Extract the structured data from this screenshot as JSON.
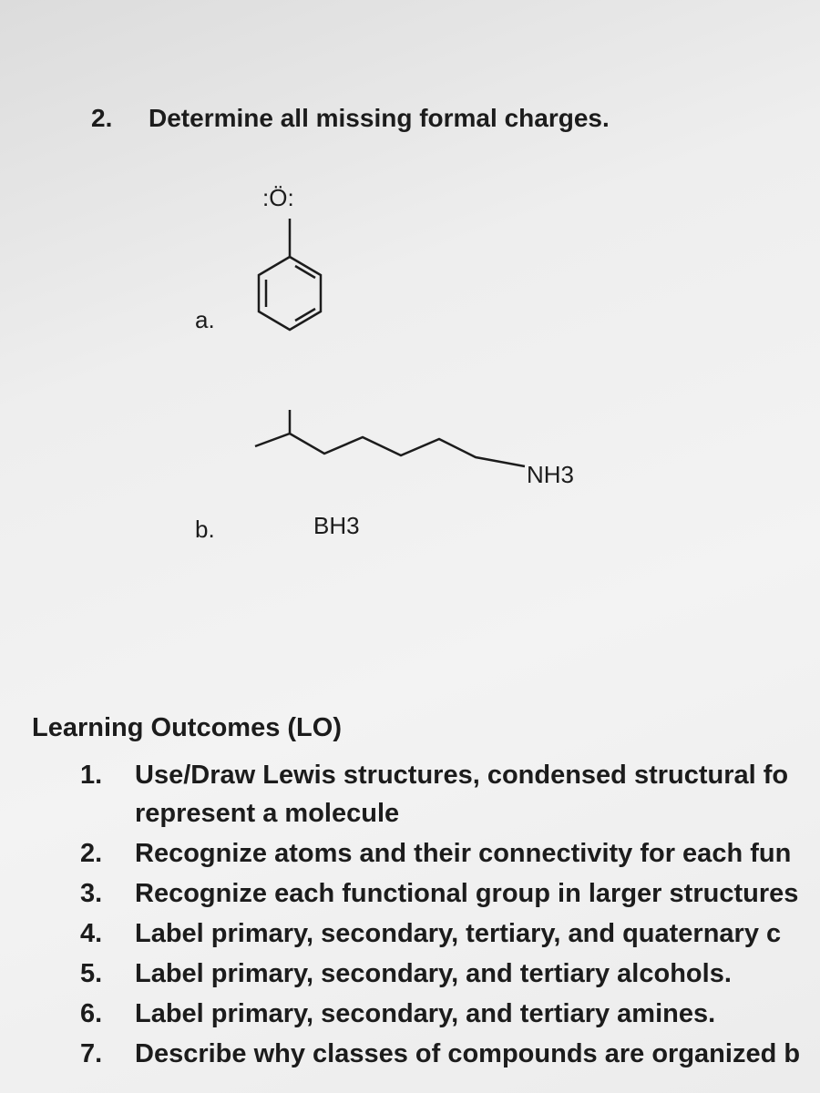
{
  "question": {
    "number": "2.",
    "text": "Determine all missing formal charges."
  },
  "structure_a": {
    "label": "a.",
    "atom": ":Ö:"
  },
  "structure_b": {
    "label": "b.",
    "group_right": "NH3",
    "group_left": "BH3"
  },
  "learning_outcomes": {
    "title": "Learning Outcomes (LO)",
    "items": [
      {
        "number": "1.",
        "lines": [
          "Use/Draw Lewis structures, condensed structural fo",
          "represent a molecule"
        ]
      },
      {
        "number": "2.",
        "lines": [
          "Recognize atoms and their connectivity for each fun"
        ]
      },
      {
        "number": "3.",
        "lines": [
          "Recognize each functional group in larger structures"
        ]
      },
      {
        "number": "4.",
        "lines": [
          "Label primary, secondary, tertiary, and quaternary c"
        ]
      },
      {
        "number": "5.",
        "lines": [
          "Label primary, secondary, and tertiary alcohols."
        ]
      },
      {
        "number": "6.",
        "lines": [
          "Label primary, secondary, and tertiary amines."
        ]
      },
      {
        "number": "7.",
        "lines": [
          "Describe why classes of compounds are organized b"
        ]
      }
    ]
  }
}
